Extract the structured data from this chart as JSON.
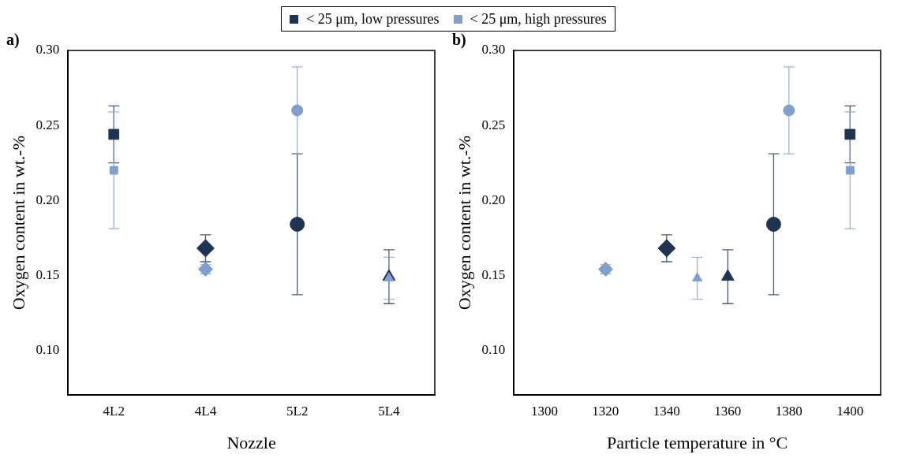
{
  "chart_data": [
    {
      "type": "scatter",
      "title": "a)",
      "xlabel": "Nozzle",
      "ylabel": "Oxygen content in wt.-%",
      "categories": [
        "4L2",
        "4L4",
        "5L2",
        "5L4"
      ],
      "ylim": [
        0.07,
        0.3
      ],
      "yticks": [
        {
          "value": 0.1,
          "label": "0.10"
        },
        {
          "value": 0.15,
          "label": "0.15"
        },
        {
          "value": 0.2,
          "label": "0.20"
        },
        {
          "value": 0.25,
          "label": "0.25"
        },
        {
          "value": 0.3,
          "label": "0.30"
        }
      ],
      "legend": "top",
      "grid": false,
      "series": [
        {
          "name": "< 25 μm, low pressures",
          "color": "#1f3352",
          "marker": "square",
          "x": [
            "4L2"
          ],
          "values": [
            0.244
          ],
          "errors": [
            [
              0.225,
              0.263
            ]
          ]
        },
        {
          "name": "< 25 μm, high pressures",
          "color": "#7f9fcf",
          "marker": "square",
          "x": [
            "4L2"
          ],
          "values": [
            0.22
          ],
          "errors": [
            [
              0.181,
              0.259
            ]
          ]
        },
        {
          "color": "#1f3352",
          "marker": "diamond",
          "x": [
            "4L4"
          ],
          "values": [
            0.168
          ],
          "errors": [
            [
              0.159,
              0.177
            ]
          ]
        },
        {
          "color": "#7f9fcf",
          "marker": "diamond",
          "x": [
            "4L4"
          ],
          "values": [
            0.154
          ],
          "errors": [
            [
              0.151,
              0.157
            ]
          ]
        },
        {
          "color": "#1f3352",
          "marker": "circle",
          "x": [
            "5L2"
          ],
          "values": [
            0.184
          ],
          "errors": [
            [
              0.137,
              0.231
            ]
          ]
        },
        {
          "color": "#7f9fcf",
          "marker": "circle",
          "x": [
            "5L2"
          ],
          "values": [
            0.26
          ],
          "errors": [
            [
              0.231,
              0.289
            ]
          ]
        },
        {
          "color": "#1f3352",
          "marker": "triangle",
          "x": [
            "5L4"
          ],
          "values": [
            0.149
          ],
          "errors": [
            [
              0.131,
              0.167
            ]
          ]
        },
        {
          "color": "#7f9fcf",
          "marker": "triangle",
          "x": [
            "5L4"
          ],
          "values": [
            0.148
          ],
          "errors": [
            [
              0.134,
              0.162
            ]
          ]
        }
      ]
    },
    {
      "type": "scatter",
      "title": "b)",
      "xlabel": "Particle temperature in °C",
      "ylabel": "Oxygen content in wt.-%",
      "xlim": [
        1290,
        1410
      ],
      "xticks": [
        1300,
        1320,
        1340,
        1360,
        1380,
        1400
      ],
      "ylim": [
        0.07,
        0.3
      ],
      "yticks": [
        {
          "value": 0.1,
          "label": "0.10"
        },
        {
          "value": 0.15,
          "label": "0.15"
        },
        {
          "value": 0.2,
          "label": "0.20"
        },
        {
          "value": 0.25,
          "label": "0.25"
        },
        {
          "value": 0.3,
          "label": "0.30"
        }
      ],
      "grid": false,
      "series": [
        {
          "color": "#1f3352",
          "marker": "square",
          "x": [
            1400
          ],
          "values": [
            0.244
          ],
          "errors": [
            [
              0.225,
              0.263
            ]
          ]
        },
        {
          "color": "#7f9fcf",
          "marker": "square",
          "x": [
            1400
          ],
          "values": [
            0.22
          ],
          "errors": [
            [
              0.181,
              0.259
            ]
          ]
        },
        {
          "color": "#1f3352",
          "marker": "diamond",
          "x": [
            1340
          ],
          "values": [
            0.168
          ],
          "errors": [
            [
              0.159,
              0.177
            ]
          ]
        },
        {
          "color": "#7f9fcf",
          "marker": "diamond",
          "x": [
            1320
          ],
          "values": [
            0.154
          ],
          "errors": [
            [
              0.151,
              0.157
            ]
          ]
        },
        {
          "color": "#1f3352",
          "marker": "circle",
          "x": [
            1375
          ],
          "values": [
            0.184
          ],
          "errors": [
            [
              0.137,
              0.231
            ]
          ]
        },
        {
          "color": "#7f9fcf",
          "marker": "circle",
          "x": [
            1380
          ],
          "values": [
            0.26
          ],
          "errors": [
            [
              0.231,
              0.289
            ]
          ]
        },
        {
          "color": "#1f3352",
          "marker": "triangle",
          "x": [
            1360
          ],
          "values": [
            0.149
          ],
          "errors": [
            [
              0.131,
              0.167
            ]
          ]
        },
        {
          "color": "#7f9fcf",
          "marker": "triangle",
          "x": [
            1350
          ],
          "values": [
            0.148
          ],
          "errors": [
            [
              0.134,
              0.162
            ]
          ]
        }
      ]
    }
  ]
}
